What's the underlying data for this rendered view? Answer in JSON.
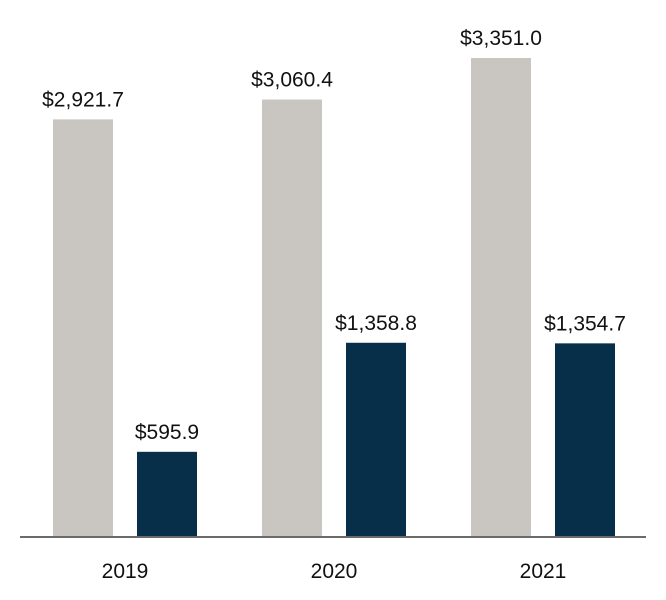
{
  "chart_data": {
    "type": "bar",
    "categories": [
      "2019",
      "2020",
      "2021"
    ],
    "series": [
      {
        "values": [
          2921.7,
          3060.4,
          3351.0
        ],
        "labels": [
          "$2,921.7",
          "$3,060.4",
          "$3,351.0"
        ],
        "color": "#c9c6c1"
      },
      {
        "values": [
          595.9,
          1358.8,
          1354.7
        ],
        "labels": [
          "$595.9",
          "$1,358.8",
          "$1,354.7"
        ],
        "color": "#082f4a"
      }
    ],
    "ylim": [
      0,
      3351.0
    ],
    "grid": false,
    "axis_color": "#6b6b6b"
  }
}
